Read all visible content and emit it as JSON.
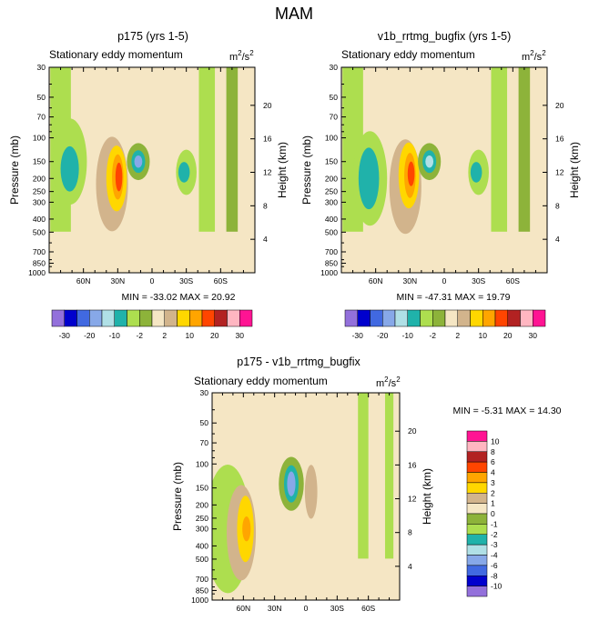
{
  "chart_data": {
    "type": "contour",
    "suptitle": "MAM",
    "ylabel": "Pressure (mb)",
    "ylabel_right": "Height (km)",
    "units_text": "m",
    "units_sup1": "2",
    "units_mid": "/s",
    "units_sup2": "2",
    "pressure_ticks": [
      30,
      50,
      70,
      100,
      150,
      200,
      250,
      300,
      400,
      500,
      700,
      850,
      1000
    ],
    "height_ticks": [
      20,
      16,
      12,
      8,
      4
    ],
    "lat_ticks": [
      "60N",
      "30N",
      "0",
      "30S",
      "60S"
    ],
    "lat_tick_values": [
      60,
      30,
      0,
      -30,
      -60
    ],
    "xlim": [
      90,
      -90
    ],
    "panels": [
      {
        "title": "p175 (yrs 1-5)",
        "subtitle": "Stationary eddy momentum",
        "stats": "MIN = -33.02  MAX =  20.92",
        "min": -33.02,
        "max": 20.92
      },
      {
        "title": "v1b_rrtmg_bugfix (yrs 1-5)",
        "subtitle": "Stationary eddy momentum",
        "stats": "MIN = -47.31  MAX =  19.79",
        "min": -47.31,
        "max": 19.79
      },
      {
        "title": "p175 - v1b_rrtmg_bugfix",
        "subtitle": "Stationary eddy momentum",
        "stats": "MIN =  -5.31  MAX =  14.30",
        "min": -5.31,
        "max": 14.3
      }
    ],
    "colorbar_top": {
      "labels": [
        "-30",
        "-20",
        "-10",
        "-2",
        "2",
        "10",
        "20",
        "30"
      ],
      "colors": [
        "#9370db",
        "#0000cd",
        "#4169e1",
        "#87a8e8",
        "#b0e0e6",
        "#20b2aa",
        "#adde4f",
        "#8db33a",
        "#f5e6c4",
        "#d2b48c",
        "#ffd700",
        "#ffa500",
        "#ff4500",
        "#b22222",
        "#ffb6c1",
        "#ff1493"
      ]
    },
    "colorbar_diff": {
      "labels": [
        "10",
        "8",
        "6",
        "4",
        "3",
        "2",
        "1",
        "0",
        "-1",
        "-2",
        "-3",
        "-4",
        "-6",
        "-8",
        "-10"
      ],
      "colors": [
        "#ff1493",
        "#ffb6c1",
        "#b22222",
        "#ff4500",
        "#ffa500",
        "#ffd700",
        "#d2b48c",
        "#f5e6c4",
        "#8db33a",
        "#adde4f",
        "#20b2aa",
        "#b0e0e6",
        "#87a8e8",
        "#4169e1",
        "#0000cd",
        "#9370db"
      ]
    }
  }
}
